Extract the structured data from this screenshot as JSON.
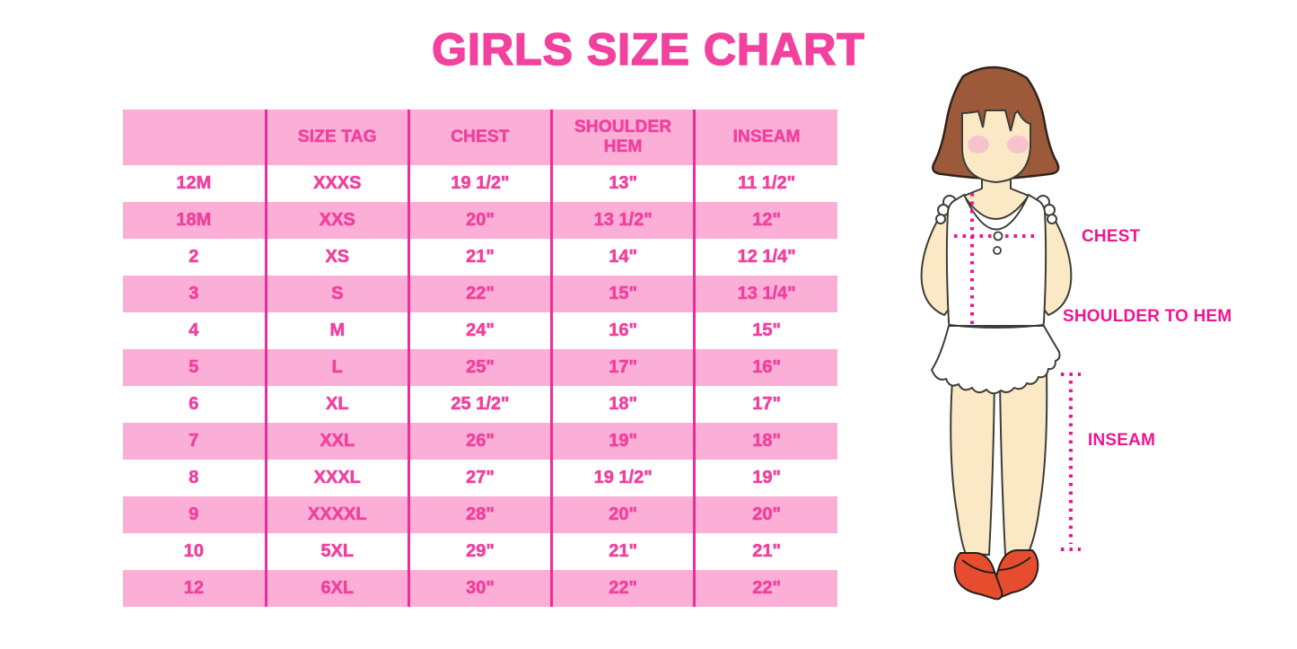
{
  "title": "GIRLS SIZE CHART",
  "colors": {
    "title_pink": "#F2419E",
    "row_pink": "#FBAFD6",
    "line_magenta": "#EE2D96",
    "cell_text": "#F0419F",
    "label_magenta": "#ED1692",
    "hair_brown": "#9D5A3B",
    "hair_outline": "#32241A",
    "skin": "#FBE9C6",
    "blush": "#F6C3CD",
    "body_outline": "#3D3D38",
    "shoe_red": "#E74C2E"
  },
  "chart_data": {
    "type": "table",
    "title": "GIRLS SIZE CHART",
    "columns": [
      "",
      "SIZE TAG",
      "CHEST",
      "SHOULDER HEM",
      "INSEAM"
    ],
    "rows": [
      [
        "12M",
        "XXXS",
        "19 1/2\"",
        "13\"",
        "11 1/2\""
      ],
      [
        "18M",
        "XXS",
        "20\"",
        "13 1/2\"",
        "12\""
      ],
      [
        "2",
        "XS",
        "21\"",
        "14\"",
        "12 1/4\""
      ],
      [
        "3",
        "S",
        "22\"",
        "15\"",
        "13 1/4\""
      ],
      [
        "4",
        "M",
        "24\"",
        "16\"",
        "15\""
      ],
      [
        "5",
        "L",
        "25\"",
        "17\"",
        "16\""
      ],
      [
        "6",
        "XL",
        "25 1/2\"",
        "18\"",
        "17\""
      ],
      [
        "7",
        "XXL",
        "26\"",
        "19\"",
        "18\""
      ],
      [
        "8",
        "XXXL",
        "27\"",
        "19 1/2\"",
        "19\""
      ],
      [
        "9",
        "XXXXL",
        "28\"",
        "20\"",
        "20\""
      ],
      [
        "10",
        "5XL",
        "29\"",
        "21\"",
        "21\""
      ],
      [
        "12",
        "6XL",
        "30\"",
        "22\"",
        "22\""
      ]
    ]
  },
  "figure": {
    "labels": {
      "chest": "CHEST",
      "shoulder_to_hem": "SHOULDER TO HEM",
      "inseam": "INSEAM"
    }
  }
}
